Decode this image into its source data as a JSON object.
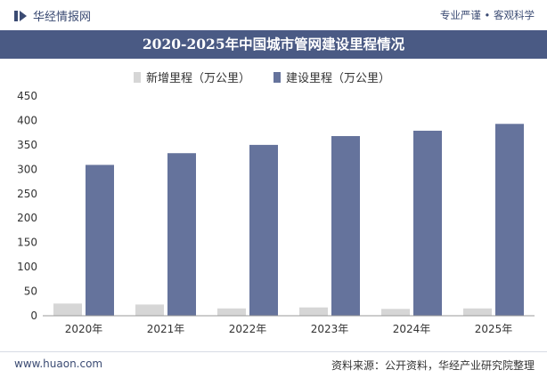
{
  "header": {
    "brand": "华经情报网",
    "tagline": "专业严谨 • 客观科学",
    "title": "2020-2025年中国城市管网建设里程情况"
  },
  "footer": {
    "website": "www.huaon.com",
    "source": "资料来源：公开资料，华经产业研究院整理"
  },
  "colors": {
    "series_new": "#d6d6d6",
    "series_built": "#65739c",
    "title_bg": "#4a5a84",
    "brand_text": "#3b4b73"
  },
  "chart_data": {
    "type": "bar",
    "categories": [
      "2020年",
      "2021年",
      "2022年",
      "2023年",
      "2024年",
      "2025年"
    ],
    "series": [
      {
        "name": "新增里程（万公里）",
        "values": [
          25,
          23,
          15,
          17,
          14,
          15
        ]
      },
      {
        "name": "建设里程（万公里）",
        "values": [
          309,
          333,
          350,
          368,
          379,
          393
        ]
      }
    ],
    "yticks": [
      0,
      50,
      100,
      150,
      200,
      250,
      300,
      350,
      400,
      450
    ],
    "ylim": [
      0,
      450
    ],
    "grid": false,
    "legend": "top"
  }
}
